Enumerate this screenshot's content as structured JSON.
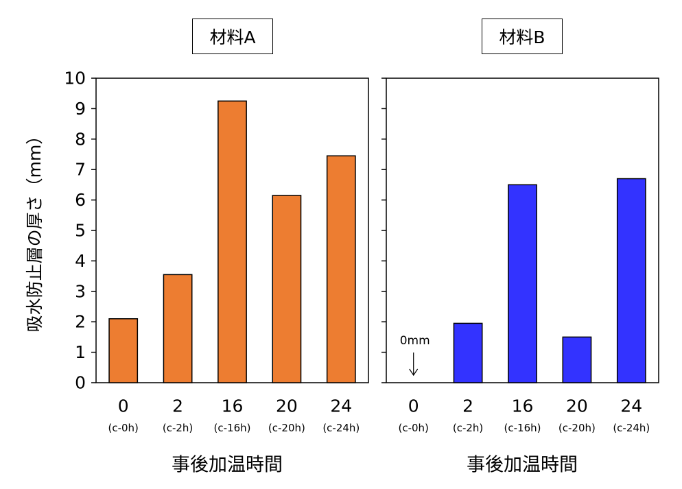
{
  "chart_data": [
    {
      "type": "bar",
      "title": "材料A",
      "categories": [
        "0",
        "2",
        "16",
        "20",
        "24"
      ],
      "sub_labels": [
        "(c-0h)",
        "(c-2h)",
        "(c-16h)",
        "(c-20h)",
        "(c-24h)"
      ],
      "values": [
        2.1,
        3.55,
        9.25,
        6.15,
        7.45
      ],
      "xlabel": "事後加温時間",
      "ylabel": "吸水防止層の厚さ（mm）",
      "ylim": [
        0,
        10
      ],
      "yticks": [
        "0",
        "1",
        "2",
        "3",
        "4",
        "5",
        "6",
        "7",
        "8",
        "9",
        "10"
      ],
      "color": "#ED7D31",
      "grid": false
    },
    {
      "type": "bar",
      "title": "材料B",
      "categories": [
        "0",
        "2",
        "16",
        "20",
        "24"
      ],
      "sub_labels": [
        "(c-0h)",
        "(c-2h)",
        "(c-16h)",
        "(c-20h)",
        "(c-24h)"
      ],
      "values": [
        0,
        1.95,
        6.5,
        1.5,
        6.7
      ],
      "xlabel": "事後加温時間",
      "ylim": [
        0,
        10
      ],
      "color": "#3333FF",
      "annotation": "0mm",
      "grid": false
    }
  ]
}
